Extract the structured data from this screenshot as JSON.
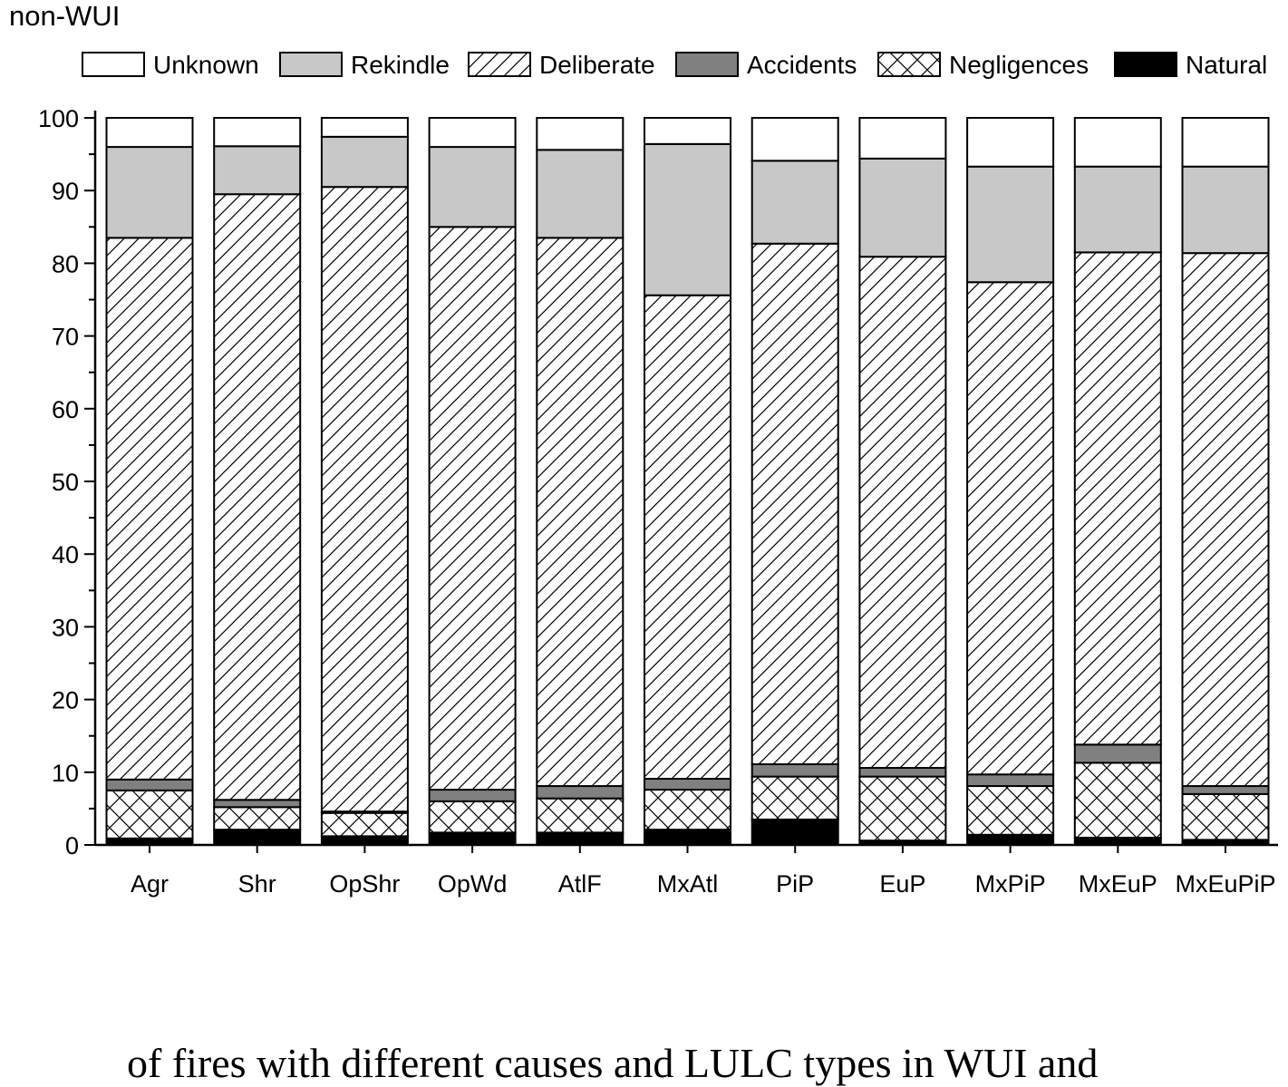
{
  "chart_data": {
    "type": "bar",
    "stacked": true,
    "title": "non-WUI",
    "xlabel": "",
    "ylabel": "",
    "ylim": [
      0,
      100
    ],
    "yticks": [
      "0",
      "10",
      "20",
      "30",
      "40",
      "50",
      "60",
      "70",
      "80",
      "90",
      "100"
    ],
    "grid": false,
    "legend_placement": "top",
    "categories": [
      "Agr",
      "Shr",
      "OpShr",
      "OpWd",
      "AtlF",
      "MxAtl",
      "PiP",
      "EuP",
      "MxPiP",
      "MxEuP",
      "MxEuPiP"
    ],
    "series": [
      {
        "name": "Natural",
        "fill": "solid",
        "color": "#000000",
        "values": [
          0.9,
          2.1,
          1.2,
          1.7,
          1.7,
          2.1,
          3.5,
          0.6,
          1.4,
          1.0,
          0.7
        ]
      },
      {
        "name": "Negligences",
        "fill": "crosshatch",
        "color": "#ffffff",
        "values": [
          6.6,
          3.1,
          3.2,
          4.3,
          4.7,
          5.5,
          5.9,
          8.8,
          6.7,
          10.3,
          6.3
        ]
      },
      {
        "name": "Accidents",
        "fill": "solid",
        "color": "#808080",
        "values": [
          1.5,
          1.0,
          0.2,
          1.6,
          1.7,
          1.5,
          1.7,
          1.2,
          1.6,
          2.5,
          1.1
        ]
      },
      {
        "name": "Deliberate",
        "fill": "diagonal-hatch",
        "color": "#ffffff",
        "values": [
          74.5,
          83.3,
          85.9,
          77.4,
          75.4,
          66.5,
          71.6,
          70.3,
          67.7,
          67.7,
          73.3
        ]
      },
      {
        "name": "Rekindle",
        "fill": "solid",
        "color": "#c8c8c8",
        "values": [
          12.5,
          6.6,
          6.9,
          11.0,
          12.1,
          20.8,
          11.4,
          13.5,
          15.9,
          11.8,
          11.9
        ]
      },
      {
        "name": "Unknown",
        "fill": "solid",
        "color": "#ffffff",
        "values": [
          4.0,
          3.9,
          2.6,
          4.0,
          4.4,
          3.6,
          5.9,
          5.6,
          6.7,
          6.7,
          6.7
        ]
      }
    ],
    "legend_order": [
      "Unknown",
      "Rekindle",
      "Deliberate",
      "Accidents",
      "Negligences",
      "Natural"
    ]
  },
  "caption_fragment": "of fires with different causes and LULC types in WUI and"
}
